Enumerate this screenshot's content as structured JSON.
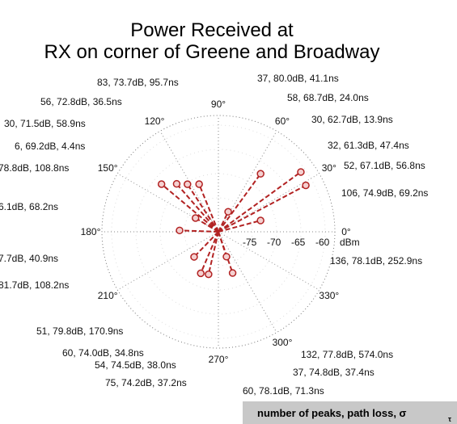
{
  "chart_data": {
    "type": "polar",
    "title": [
      "Power Received at",
      "RX on corner of Greene and Broadway"
    ],
    "r_label": "dBm",
    "rlim": [
      -82,
      -58
    ],
    "rticks": [
      -75,
      -70,
      -65,
      -60
    ],
    "thetaticks": [
      {
        "value": 0,
        "label": "0°"
      },
      {
        "value": 30,
        "label": "30°"
      },
      {
        "value": 60,
        "label": "60°"
      },
      {
        "value": 90,
        "label": "90°"
      },
      {
        "value": 120,
        "label": "120°"
      },
      {
        "value": 150,
        "label": "150°"
      },
      {
        "value": 180,
        "label": "180°"
      },
      {
        "value": 210,
        "label": "210°"
      },
      {
        "value": 270,
        "label": "270°"
      },
      {
        "value": 300,
        "label": "300°"
      },
      {
        "value": 330,
        "label": "330°"
      }
    ],
    "grid": true,
    "color": "#b22222",
    "theta": [
      140,
      131,
      123,
      112,
      54,
      36,
      28,
      15,
      64,
      247,
      257,
      289,
      288,
      226,
      178,
      149
    ],
    "r": [
      -66.7,
      -68.9,
      -70.3,
      -71.4,
      -67.2,
      -61,
      -61.6,
      -73,
      -77.4,
      -72.7,
      -73,
      -73,
      -76.6,
      -74.8,
      -74,
      -76.5
    ],
    "annotations": [
      "83, 73.7dB, 95.7ns",
      "37, 80.0dB, 41.1ns",
      "56, 72.8dB, 36.5ns",
      "58, 68.7dB, 24.0ns",
      "30, 71.5dB, 58.9ns",
      "30, 62.7dB, 13.9ns",
      "6, 69.2dB, 4.4ns",
      "32, 61.3dB, 47.4ns",
      "78.8dB, 108.8ns",
      "52, 67.1dB, 56.8ns",
      "106, 74.9dB, 69.2ns",
      "6.1dB, 68.2ns",
      "136, 78.1dB, 252.9ns",
      "7.7dB, 40.9ns",
      "81.7dB, 108.2ns",
      "51, 79.8dB, 170.9ns",
      "60, 74.0dB, 34.8ns",
      "132, 77.8dB, 574.0ns",
      "54, 74.5dB, 38.0ns",
      "37, 74.8dB, 37.4ns",
      "75, 74.2dB, 37.2ns",
      "60, 78.1dB, 71.3ns"
    ],
    "legend_note": [
      "number of peaks, path loss, σ",
      "τ"
    ]
  }
}
